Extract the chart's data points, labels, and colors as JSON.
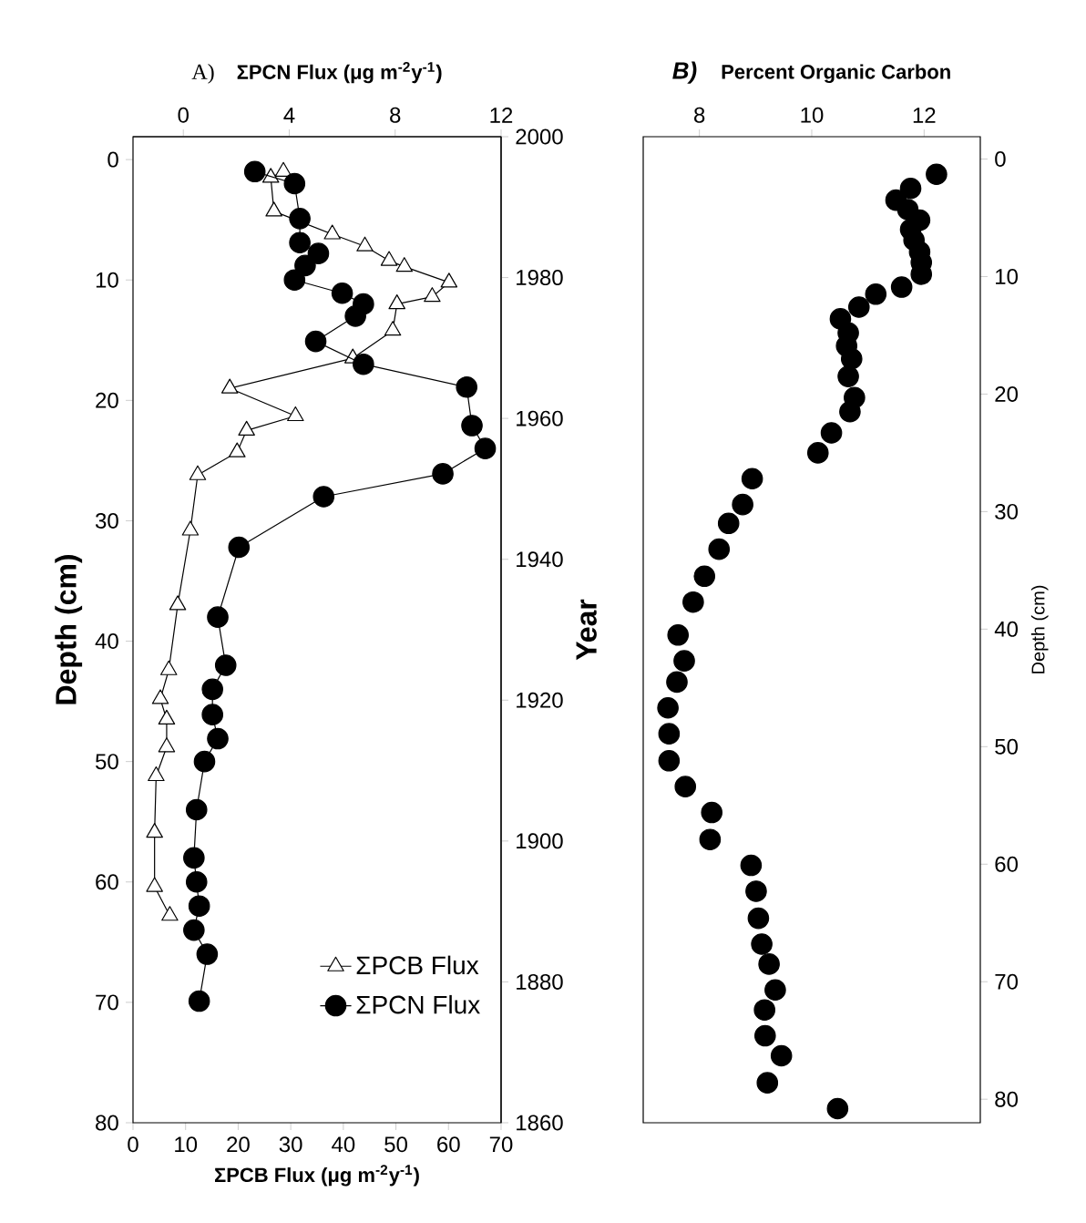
{
  "chart_data": [
    {
      "type": "line",
      "title": "A)",
      "x2label": "ΣPCN Flux (μg m$^{-2}$y$^{-1}$)",
      "xlabel": "ΣPCB Flux (μg m$^{-2}$y$^{-1}$)",
      "ylabel": "Depth (cm)",
      "y2label": "Year",
      "xlim": [
        0,
        70
      ],
      "xticks": [
        0,
        10,
        20,
        30,
        40,
        50,
        60,
        70
      ],
      "x2lim": [
        -1.9,
        12
      ],
      "x2ticks": [
        0,
        4,
        8,
        12
      ],
      "ylim": [
        80,
        -1.9
      ],
      "yticks": [
        0,
        10,
        20,
        30,
        40,
        50,
        60,
        70,
        80
      ],
      "y2lim": [
        1860,
        2000
      ],
      "y2ticks": [
        1860,
        1880,
        1900,
        1920,
        1940,
        1960,
        1980,
        2000
      ],
      "legend": "bottom right",
      "series": [
        {
          "name": "ΣPCB Flux",
          "color": "#000000",
          "marker": "triangle",
          "x": [
            28.6,
            26.2,
            26.8,
            37.9,
            44.1,
            48.7,
            51.6,
            60.1,
            56.9,
            50.2,
            49.4,
            41.8,
            18.4,
            30.9,
            21.6,
            19.8,
            12.3,
            10.9,
            8.5,
            6.8,
            5.2,
            6.4,
            6.4,
            4.4,
            4.1,
            4.1,
            7.0
          ],
          "values": [
            1.0,
            1.5,
            4.3,
            6.2,
            7.2,
            8.4,
            8.9,
            10.2,
            11.4,
            12.0,
            14.2,
            16.5,
            19.0,
            21.3,
            22.5,
            24.3,
            26.2,
            30.8,
            37.0,
            42.4,
            44.8,
            46.5,
            48.8,
            51.2,
            55.9,
            60.4,
            62.8
          ]
        },
        {
          "name": "ΣPCN Flux",
          "color": "#000000",
          "marker": "circle",
          "axis": "x2",
          "x": [
            2.7,
            4.2,
            4.4,
            4.4,
            5.1,
            4.6,
            4.2,
            6.0,
            6.8,
            6.5,
            5.0,
            6.8,
            10.7,
            10.9,
            11.4,
            9.8,
            5.3,
            2.1,
            1.3,
            1.6,
            1.1,
            1.1,
            1.3,
            0.8,
            0.5,
            0.4,
            0.5,
            0.6,
            0.4,
            0.9,
            0.6
          ],
          "values": [
            1.0,
            2.0,
            4.9,
            6.9,
            7.8,
            8.8,
            10.0,
            11.1,
            12.0,
            13.0,
            15.1,
            17.0,
            18.9,
            22.1,
            24.0,
            26.1,
            28.0,
            32.2,
            38.0,
            42.0,
            44.0,
            46.1,
            48.1,
            50.0,
            54.0,
            58.0,
            60.0,
            62.0,
            64.0,
            66.0,
            69.9
          ]
        }
      ]
    },
    {
      "type": "scatter",
      "title": "B)",
      "xlabel": "Percent Organic Carbon",
      "ylabel": "Depth (cm)",
      "xlim": [
        7,
        13
      ],
      "xticks": [
        8,
        10,
        12
      ],
      "ylim": [
        82,
        -1.9
      ],
      "yticks": [
        0,
        10,
        20,
        30,
        40,
        50,
        60,
        70,
        80
      ],
      "marker": "circle",
      "series": [
        {
          "color": "#000000",
          "x": [
            12.22,
            11.76,
            11.5,
            11.71,
            11.92,
            11.76,
            11.82,
            11.92,
            11.95,
            11.95,
            11.6,
            11.14,
            10.84,
            10.51,
            10.65,
            10.62,
            10.71,
            10.65,
            10.76,
            10.68,
            10.35,
            10.11,
            8.94,
            8.77,
            8.52,
            8.35,
            8.09,
            7.89,
            7.62,
            7.73,
            7.6,
            7.44,
            7.46,
            7.46,
            7.75,
            8.22,
            8.19,
            8.92,
            9.01,
            9.05,
            9.11,
            9.24,
            9.35,
            9.16,
            9.17,
            9.46,
            9.21,
            10.46
          ],
          "values": [
            1.3,
            2.5,
            3.5,
            4.3,
            5.2,
            6.0,
            6.9,
            7.9,
            8.8,
            9.8,
            10.9,
            11.5,
            12.6,
            13.6,
            14.8,
            15.9,
            17.0,
            18.5,
            20.3,
            21.5,
            23.3,
            25.0,
            27.2,
            29.4,
            31.0,
            33.2,
            35.5,
            37.7,
            40.5,
            42.7,
            44.5,
            46.7,
            48.9,
            51.2,
            53.4,
            55.6,
            57.9,
            60.1,
            62.3,
            64.6,
            66.8,
            68.5,
            70.7,
            72.4,
            74.6,
            76.3,
            78.6,
            80.8
          ]
        }
      ]
    }
  ]
}
